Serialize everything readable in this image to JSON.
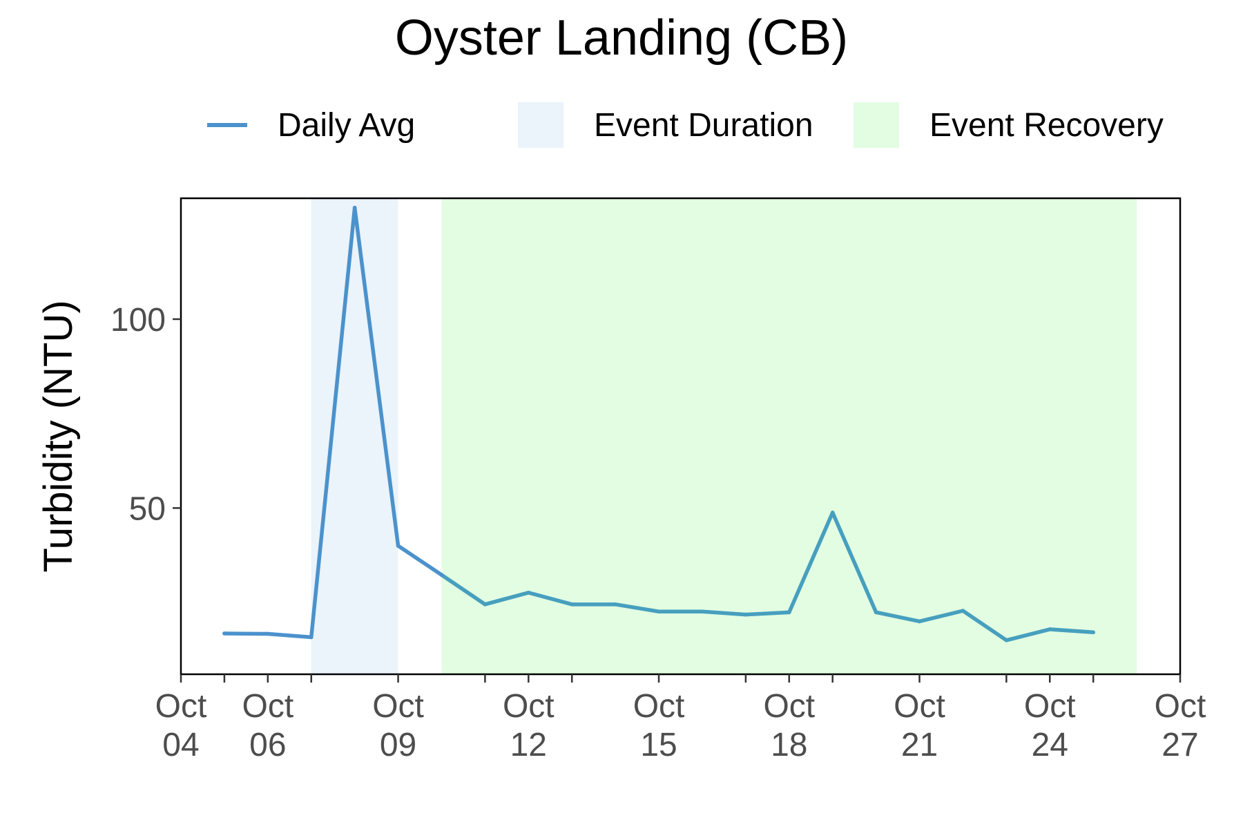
{
  "chart_data": {
    "type": "line",
    "title": "Oyster Landing (CB)",
    "xlabel": "",
    "ylabel": "Turbidity (NTU)",
    "x_type": "date",
    "xlim": [
      "2023-10-04",
      "2023-10-27"
    ],
    "ylim": [
      6,
      132
    ],
    "x_ticks": [
      {
        "date": "2023-10-04",
        "label": "Oct\n04"
      },
      {
        "date": "2023-10-06",
        "label": "Oct\n06"
      },
      {
        "date": "2023-10-09",
        "label": "Oct\n09"
      },
      {
        "date": "2023-10-12",
        "label": "Oct\n12"
      },
      {
        "date": "2023-10-15",
        "label": "Oct\n15"
      },
      {
        "date": "2023-10-18",
        "label": "Oct\n18"
      },
      {
        "date": "2023-10-21",
        "label": "Oct\n21"
      },
      {
        "date": "2023-10-24",
        "label": "Oct\n24"
      },
      {
        "date": "2023-10-27",
        "label": "Oct\n27"
      }
    ],
    "y_ticks": [
      50,
      100
    ],
    "grid": false,
    "legend_position": "top",
    "legend": [
      {
        "label": "Daily Avg",
        "kind": "line",
        "color": "#4b92cc"
      },
      {
        "label": "Event Duration",
        "kind": "fill",
        "color": "#ebf3fb"
      },
      {
        "label": "Event Recovery",
        "kind": "fill",
        "color": "#e2fde2"
      }
    ],
    "bands": [
      {
        "name": "Event Duration",
        "start": "2023-10-07",
        "end": "2023-10-09",
        "color": "#ebf3fb"
      },
      {
        "name": "Event Recovery",
        "start": "2023-10-10",
        "end": "2023-10-26",
        "color": "#e2fde2"
      }
    ],
    "series": [
      {
        "name": "Daily Avg",
        "colors": {
          "event": "#4b92cc",
          "recovery": "#479fbe"
        },
        "points": [
          {
            "date": "2023-10-05",
            "y": 16.8
          },
          {
            "date": "2023-10-06",
            "y": 16.7
          },
          {
            "date": "2023-10-07",
            "y": 15.8
          },
          {
            "date": "2023-10-08",
            "y": 129.5
          },
          {
            "date": "2023-10-09",
            "y": 40.0
          },
          {
            "date": "2023-10-10",
            "y": 32.3
          },
          {
            "date": "2023-10-11",
            "y": 24.5
          },
          {
            "date": "2023-10-12",
            "y": 27.6
          },
          {
            "date": "2023-10-13",
            "y": 24.5
          },
          {
            "date": "2023-10-14",
            "y": 24.5
          },
          {
            "date": "2023-10-15",
            "y": 22.6
          },
          {
            "date": "2023-10-16",
            "y": 22.6
          },
          {
            "date": "2023-10-17",
            "y": 21.8
          },
          {
            "date": "2023-10-18",
            "y": 22.4
          },
          {
            "date": "2023-10-19",
            "y": 48.8
          },
          {
            "date": "2023-10-20",
            "y": 22.4
          },
          {
            "date": "2023-10-21",
            "y": 20.0
          },
          {
            "date": "2023-10-22",
            "y": 22.8
          },
          {
            "date": "2023-10-23",
            "y": 15.0
          },
          {
            "date": "2023-10-24",
            "y": 17.9
          },
          {
            "date": "2023-10-25",
            "y": 17.1
          }
        ]
      }
    ]
  }
}
